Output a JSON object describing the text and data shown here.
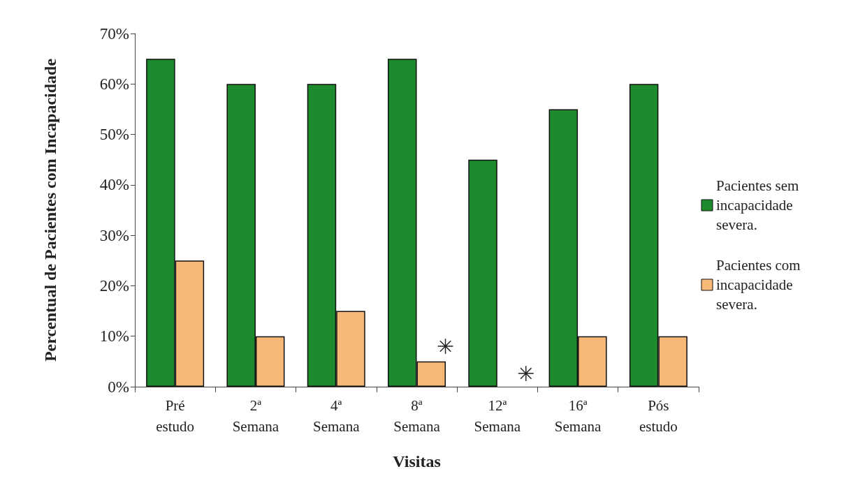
{
  "chart_data": {
    "type": "bar",
    "xlabel": "Visitas",
    "ylabel": "Percentual de Pacientes com Incapacidade",
    "categories": [
      "Pré estudo",
      "2ª Semana",
      "4ª Semana",
      "8ª Semana",
      "12ª Semana",
      "16ª Semana",
      "Pós estudo"
    ],
    "series": [
      {
        "name": "Pacientes sem incapacidade severa.",
        "color": "#1e8a2e",
        "values": [
          65,
          60,
          60,
          65,
          45,
          55,
          60
        ]
      },
      {
        "name": "Pacientes com incapacidade severa.",
        "color": "#f8b878",
        "values": [
          25,
          10,
          15,
          5,
          0,
          10,
          10
        ]
      }
    ],
    "ylim": [
      0,
      70
    ],
    "yticks": [
      {
        "value": 0,
        "label": "0%"
      },
      {
        "value": 10,
        "label": "10%"
      },
      {
        "value": 20,
        "label": "20%"
      },
      {
        "value": 30,
        "label": "30%"
      },
      {
        "value": 40,
        "label": "40%"
      },
      {
        "value": 50,
        "label": "50%"
      },
      {
        "value": 60,
        "label": "60%"
      },
      {
        "value": 70,
        "label": "70%"
      }
    ],
    "grid": false,
    "legend": "right",
    "annotations": [
      {
        "text": "✳",
        "x": "8ª Semana",
        "y": 8
      },
      {
        "text": "✳",
        "x": "12ª Semana",
        "y": 2.5
      }
    ]
  }
}
